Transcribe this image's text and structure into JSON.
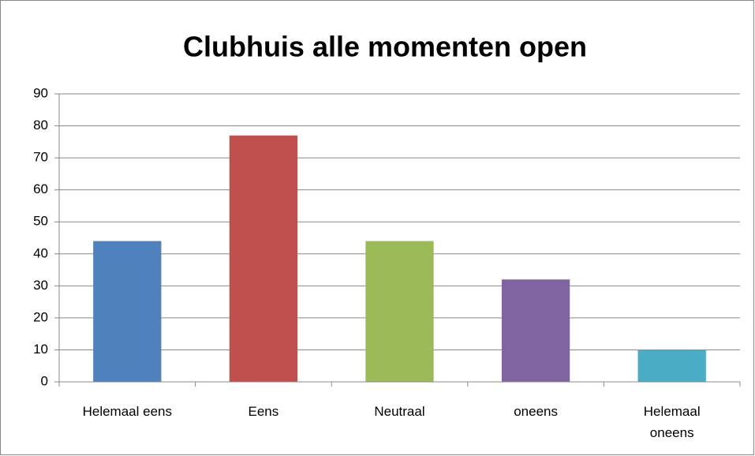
{
  "chart_data": {
    "type": "bar",
    "title": "Clubhuis alle momenten open",
    "categories": [
      "Helemaal eens",
      "Eens",
      "Neutraal",
      "oneens",
      "Helemaal oneens"
    ],
    "values": [
      44,
      77,
      44,
      32,
      10
    ],
    "colors": [
      "#4f81bd",
      "#c0504d",
      "#9bbb59",
      "#8064a2",
      "#4bacc6"
    ],
    "ylim": [
      0,
      90
    ],
    "yticks": [
      0,
      10,
      20,
      30,
      40,
      50,
      60,
      70,
      80,
      90
    ],
    "grid": true
  }
}
